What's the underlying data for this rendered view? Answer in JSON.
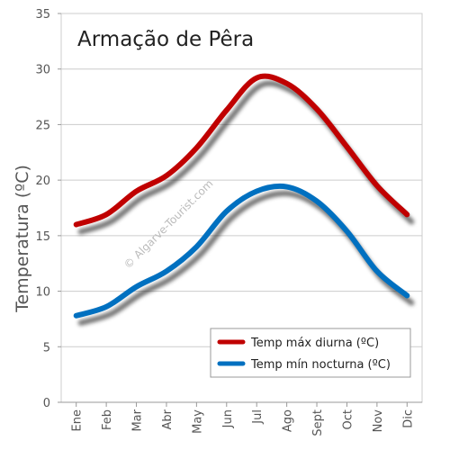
{
  "chart_data": {
    "type": "line",
    "title": "Armação de Pêra",
    "xlabel": "",
    "ylabel": "Temperatura (ºC)",
    "ylim": [
      0,
      35
    ],
    "yticks": [
      "0",
      "5",
      "10",
      "15",
      "20",
      "25",
      "30",
      "35"
    ],
    "categories": [
      "Ene",
      "Feb",
      "Mar",
      "Abr",
      "May",
      "Jun",
      "Jul",
      "Ago",
      "Sept",
      "Oct",
      "Nov",
      "Dic"
    ],
    "grid": "horizontal",
    "legend_position": "bottom-right",
    "series": [
      {
        "name": "Temp  máx diurna (ºC)",
        "color": "#c00000",
        "values": [
          16.0,
          16.9,
          19.0,
          20.4,
          22.9,
          26.3,
          29.2,
          28.7,
          26.4,
          23.0,
          19.5,
          16.9
        ]
      },
      {
        "name": "Temp  mín nocturna (ºC)",
        "color": "#0070c0",
        "values": [
          7.8,
          8.6,
          10.4,
          11.8,
          14.0,
          17.2,
          19.0,
          19.4,
          18.1,
          15.4,
          11.8,
          9.6
        ]
      }
    ],
    "watermark": "© Algarve-Tourist.com"
  }
}
